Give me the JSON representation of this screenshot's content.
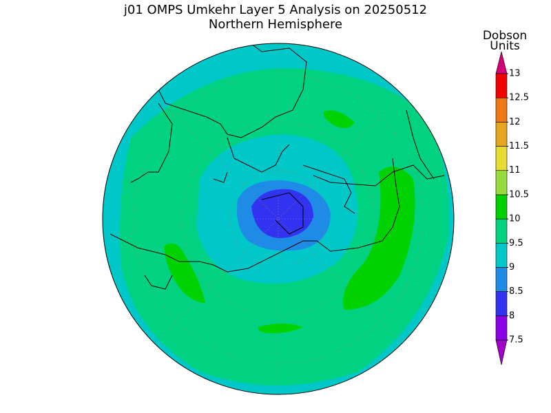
{
  "title": "j01 OMPS Umkehr Layer 5 Analysis on 20250512",
  "subtitle": "Northern Hemisphere",
  "colorbar": {
    "unit_lines": [
      "Dobson",
      "Units"
    ],
    "ticks": [
      7.5,
      8,
      8.5,
      9,
      9.5,
      10,
      10.5,
      11,
      11.5,
      12,
      12.5,
      13
    ],
    "colors": [
      "#8c00e6",
      "#3232f0",
      "#1e8ce6",
      "#00c8c8",
      "#00d282",
      "#00d200",
      "#96dc3c",
      "#e6dc32",
      "#e6a51e",
      "#f07814",
      "#f00000"
    ],
    "under_color": "#a000c8",
    "over_color": "#d2007a"
  }
}
